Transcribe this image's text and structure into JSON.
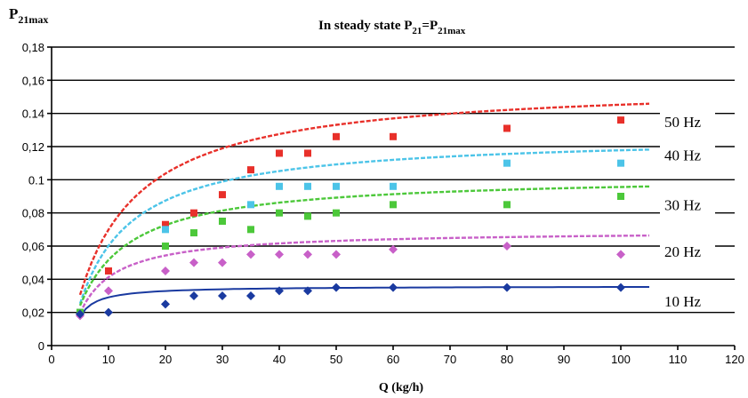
{
  "chart_data": {
    "type": "scatter",
    "title": "In steady state P",
    "title_sub": "21",
    "title_eq": "=P",
    "title_sub2": "21max",
    "ylabel_main": "P",
    "ylabel_sub": "21max",
    "xlabel": "Q (kg/h)",
    "xlim": [
      0,
      120
    ],
    "ylim": [
      0,
      0.18
    ],
    "x_ticks": [
      "0",
      "10",
      "20",
      "30",
      "40",
      "50",
      "60",
      "70",
      "80",
      "90",
      "100",
      "110",
      "120"
    ],
    "y_ticks": [
      "0",
      "0,02",
      "0,04",
      "0,06",
      "0,08",
      "0.1",
      "0,12",
      "0.14",
      "0,16",
      "0,18"
    ],
    "y_tick_values": [
      0,
      0.02,
      0.04,
      0.06,
      0.08,
      0.1,
      0.12,
      0.14,
      0.16,
      0.18
    ],
    "grid": true,
    "series": [
      {
        "name": "50 Hz",
        "color": "#e8302a",
        "marker": "square",
        "x": [
          5,
          10,
          20,
          25,
          30,
          35,
          40,
          45,
          50,
          60,
          80,
          100
        ],
        "y": [
          0.02,
          0.045,
          0.073,
          0.08,
          0.091,
          0.106,
          0.116,
          0.116,
          0.126,
          0.126,
          0.131,
          0.136
        ],
        "fit": {
          "a": 0.0306,
          "b": 0.1283,
          "k": 11.32,
          "xmin": 5,
          "xmax": 105
        }
      },
      {
        "name": "40 Hz",
        "color": "#4cc4e8",
        "marker": "square",
        "x": [
          5,
          20,
          35,
          40,
          45,
          50,
          60,
          80,
          100
        ],
        "y": [
          0.02,
          0.07,
          0.085,
          0.096,
          0.096,
          0.096,
          0.096,
          0.11,
          0.11
        ],
        "fit": {
          "a": 0.0253,
          "b": 0.1018,
          "k": 9.58,
          "xmin": 5,
          "xmax": 105
        }
      },
      {
        "name": "30 Hz",
        "color": "#4cc83a",
        "marker": "square",
        "x": [
          5,
          20,
          25,
          30,
          35,
          40,
          45,
          50,
          60,
          80,
          100
        ],
        "y": [
          0.02,
          0.06,
          0.068,
          0.075,
          0.07,
          0.08,
          0.078,
          0.08,
          0.085,
          0.085,
          0.09
        ],
        "fit": {
          "a": 0.0241,
          "b": 0.0785,
          "k": 9.25,
          "xmin": 5,
          "xmax": 105
        }
      },
      {
        "name": "20 Hz",
        "color": "#c860c8",
        "marker": "diamond",
        "x": [
          5,
          10,
          20,
          25,
          30,
          35,
          40,
          45,
          50,
          60,
          80,
          100
        ],
        "y": [
          0.018,
          0.033,
          0.045,
          0.05,
          0.05,
          0.055,
          0.055,
          0.055,
          0.055,
          0.058,
          0.06,
          0.055
        ],
        "fit": {
          "a": 0.0196,
          "b": 0.0498,
          "k": 6.5,
          "xmin": 5,
          "xmax": 105
        }
      },
      {
        "name": "10 Hz",
        "color": "#1a3aa0",
        "marker": "diamond",
        "x": [
          5,
          10,
          20,
          25,
          30,
          35,
          40,
          45,
          50,
          60,
          80,
          100
        ],
        "y": [
          0.019,
          0.02,
          0.025,
          0.03,
          0.03,
          0.03,
          0.033,
          0.033,
          0.035,
          0.035,
          0.035,
          0.035
        ],
        "fit": {
          "a": 0.0174,
          "b": 0.0185,
          "k": 2.91,
          "xmin": 5,
          "xmax": 105
        }
      }
    ],
    "series_label_positions": [
      0.1333,
      0.1133,
      0.0833,
      0.0553,
      0.0253
    ]
  }
}
